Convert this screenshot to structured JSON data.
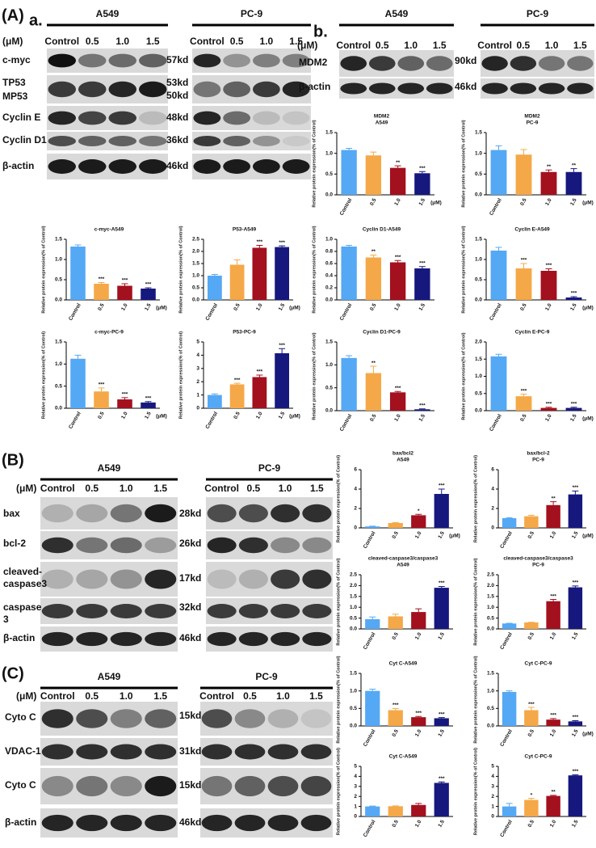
{
  "figure": {
    "A": {
      "label": "(A)",
      "sub": "a.",
      "unit": "(μM)",
      "groups": [
        "A549",
        "PC-9"
      ],
      "lanes": [
        "Control",
        "0.5",
        "1.0",
        "1.5"
      ],
      "rows": [
        "c-myc",
        "TP53",
        "MP53",
        "Cyclin E",
        "Cyclin D1",
        "β-actin"
      ],
      "sizes": [
        "57kd",
        "53kd",
        "50kd",
        "48kd",
        "36kd",
        "46kd"
      ]
    },
    "Ab": {
      "sub": "b.",
      "unit": "(μM)",
      "groups": [
        "A549",
        "PC-9"
      ],
      "lanes": [
        "Control",
        "0.5",
        "1.0",
        "1.5"
      ],
      "rows": [
        "MDM2",
        "β-actin"
      ],
      "sizes": [
        "90kd",
        "46kd"
      ]
    },
    "B": {
      "label": "(B)",
      "unit": "(μM)",
      "groups": [
        "A549",
        "PC-9"
      ],
      "lanes": [
        "Control",
        "0.5",
        "1.0",
        "1.5"
      ],
      "rows": [
        [
          "bax"
        ],
        [
          "bcl-2"
        ],
        [
          "cleaved-",
          "caspase3"
        ],
        [
          "caspase",
          "3"
        ],
        [
          "β-actin"
        ]
      ],
      "sizes": [
        "28kd",
        "26kd",
        "17kd",
        "32kd",
        "46kd"
      ]
    },
    "C": {
      "label": "(C)",
      "unit": "(μM)",
      "groups": [
        "A549",
        "PC-9"
      ],
      "lanes": [
        "Control",
        "0.5",
        "1.0",
        "1.5"
      ],
      "rows": [
        "Cyto C",
        "VDAC-1",
        "Cyto C",
        "β-actin"
      ],
      "sizes": [
        "15kd",
        "31kd",
        "15kd",
        "46kd"
      ]
    }
  },
  "chart_data": [
    {
      "type": "bar",
      "title": [
        "MDM2",
        "A549"
      ],
      "ylabel": "Relative protein expression(% of Control)",
      "unit": "(μM)",
      "categories": [
        "Control",
        "0.5",
        "1.0",
        "1.5"
      ],
      "values": [
        1.08,
        0.95,
        0.65,
        0.52
      ],
      "errors": [
        0.04,
        0.08,
        0.05,
        0.04
      ],
      "significance": [
        null,
        null,
        "**",
        "***"
      ],
      "colors": [
        "#55a8f4",
        "#f5a848",
        "#a3101e",
        "#16187e"
      ],
      "ylim": [
        0,
        1.5
      ],
      "yticks": [
        {
          "value": 0,
          "label": "0.0"
        },
        0.5,
        {
          "value": 1,
          "label": "1.0"
        },
        1.5
      ]
    },
    {
      "type": "bar",
      "title": [
        "MDM2",
        "PC-9"
      ],
      "ylabel": "Relative protein expression(% of Control)",
      "unit": "(μM)",
      "categories": [
        "Control",
        "0.5",
        "1.0",
        "1.5"
      ],
      "values": [
        1.08,
        0.97,
        0.55,
        0.55
      ],
      "errors": [
        0.1,
        0.12,
        0.05,
        0.08
      ],
      "significance": [
        null,
        null,
        "**",
        "**"
      ],
      "colors": [
        "#55a8f4",
        "#f5a848",
        "#a3101e",
        "#16187e"
      ],
      "ylim": [
        0,
        1.5
      ],
      "yticks": [
        {
          "value": 0,
          "label": "0.0"
        },
        0.5,
        {
          "value": 1,
          "label": "1.0"
        },
        1.5
      ]
    },
    {
      "type": "bar",
      "title": [
        "Cyclin D1-A549"
      ],
      "ylabel": "Relative protein expression(% of Control)",
      "categories": [
        "Control",
        "0.5",
        "1.0",
        "1.5"
      ],
      "values": [
        0.88,
        0.7,
        0.62,
        0.52
      ],
      "errors": [
        0.02,
        0.04,
        0.03,
        0.03
      ],
      "significance": [
        null,
        "**",
        "***",
        "***"
      ],
      "colors": [
        "#55a8f4",
        "#f5a848",
        "#a3101e",
        "#16187e"
      ],
      "ylim": [
        0,
        1
      ],
      "yticks": [
        {
          "value": 0,
          "label": "0.0"
        },
        0.2,
        0.4,
        0.6,
        0.8,
        {
          "value": 1,
          "label": "1.0"
        }
      ]
    },
    {
      "type": "bar",
      "title": [
        "Cyclin E-A549"
      ],
      "ylabel": "Relative protein expression(% of Control)",
      "unit": "(μM)",
      "categories": [
        "Control",
        "0.5",
        "1.0",
        "1.5"
      ],
      "values": [
        1.22,
        0.78,
        0.72,
        0.06
      ],
      "errors": [
        0.08,
        0.12,
        0.05,
        0.02
      ],
      "significance": [
        null,
        "***",
        "***",
        "***"
      ],
      "colors": [
        "#55a8f4",
        "#f5a848",
        "#a3101e",
        "#16187e"
      ],
      "ylim": [
        0,
        1.5
      ],
      "yticks": [
        {
          "value": 0,
          "label": "0.0"
        },
        0.5,
        {
          "value": 1,
          "label": "1.0"
        },
        1.5
      ]
    },
    {
      "type": "bar",
      "title": [
        "c-myc-A549"
      ],
      "ylabel": "Relative protein expression(% of Control)",
      "unit": "(μM)",
      "categories": [
        "Control",
        "0.5",
        "1.0",
        "1.5"
      ],
      "values": [
        1.32,
        0.4,
        0.35,
        0.28
      ],
      "errors": [
        0.04,
        0.03,
        0.05,
        0.02
      ],
      "significance": [
        null,
        "***",
        "***",
        "***"
      ],
      "colors": [
        "#55a8f4",
        "#f5a848",
        "#a3101e",
        "#16187e"
      ],
      "ylim": [
        0,
        1.5
      ],
      "yticks": [
        {
          "value": 0,
          "label": "0.0"
        },
        0.5,
        {
          "value": 1,
          "label": "1.0"
        },
        1.5
      ]
    },
    {
      "type": "bar",
      "title": [
        "P53-A549"
      ],
      "ylabel": "Relative protein expression(% of Control)",
      "unit": "(μM)",
      "categories": [
        "Control",
        "0.5",
        "1.0",
        "1.5"
      ],
      "values": [
        1.0,
        1.45,
        2.15,
        2.18
      ],
      "errors": [
        0.05,
        0.2,
        0.1,
        0.05
      ],
      "significance": [
        null,
        null,
        "***",
        "***"
      ],
      "colors": [
        "#55a8f4",
        "#f5a848",
        "#a3101e",
        "#16187e"
      ],
      "ylim": [
        0,
        2.5
      ],
      "yticks": [
        {
          "value": 0,
          "label": "0.0"
        },
        0.5,
        {
          "value": 1,
          "label": "1.0"
        },
        1.5,
        {
          "value": 2,
          "label": "2.0"
        },
        2.5
      ]
    },
    {
      "type": "bar",
      "title": [
        "c-myc-PC-9"
      ],
      "ylabel": "Relative protein expression(% of Control)",
      "unit": "(μM)",
      "categories": [
        "Control",
        "0.5",
        "1.0",
        "1.5"
      ],
      "values": [
        1.12,
        0.38,
        0.2,
        0.13
      ],
      "errors": [
        0.08,
        0.08,
        0.04,
        0.02
      ],
      "significance": [
        null,
        "***",
        "***",
        "***"
      ],
      "colors": [
        "#55a8f4",
        "#f5a848",
        "#a3101e",
        "#16187e"
      ],
      "ylim": [
        0,
        1.5
      ],
      "yticks": [
        {
          "value": 0,
          "label": "0.0"
        },
        0.5,
        {
          "value": 1,
          "label": "1.0"
        },
        1.5
      ]
    },
    {
      "type": "bar",
      "title": [
        "P53-PC-9"
      ],
      "ylabel": "Relative protein expression(% of Control)",
      "unit": "(μM)",
      "categories": [
        "Control",
        "0.5",
        "1.0",
        "1.5"
      ],
      "values": [
        1.0,
        1.8,
        2.35,
        4.15
      ],
      "errors": [
        0.08,
        0.08,
        0.15,
        0.35
      ],
      "significance": [
        null,
        "***",
        "***",
        "***"
      ],
      "colors": [
        "#55a8f4",
        "#f5a848",
        "#a3101e",
        "#16187e"
      ],
      "ylim": [
        0,
        5
      ],
      "yticks": [
        0,
        1,
        2,
        3,
        4,
        5
      ]
    },
    {
      "type": "bar",
      "title": [
        "Cyclin D1-PC-9"
      ],
      "ylabel": "Relative protein expression(% of Control)",
      "categories": [
        "Control",
        "0.5",
        "1.0",
        "1.5"
      ],
      "values": [
        1.15,
        0.82,
        0.4,
        0.03
      ],
      "errors": [
        0.05,
        0.15,
        0.02,
        0.01
      ],
      "significance": [
        null,
        "**",
        "***",
        "***"
      ],
      "colors": [
        "#55a8f4",
        "#f5a848",
        "#a3101e",
        "#16187e"
      ],
      "ylim": [
        0,
        1.5
      ],
      "yticks": [
        {
          "value": 0,
          "label": "0.0"
        },
        0.5,
        {
          "value": 1,
          "label": "1.0"
        },
        1.5
      ]
    },
    {
      "type": "bar",
      "title": [
        "Cyclin E-PC-9"
      ],
      "ylabel": "Relative protein expression(% of Control)",
      "unit": "(μM)",
      "categories": [
        "Control",
        "0.5",
        "1.0",
        "1.5"
      ],
      "values": [
        1.58,
        0.42,
        0.08,
        0.08
      ],
      "errors": [
        0.06,
        0.06,
        0.02,
        0.02
      ],
      "significance": [
        null,
        "***",
        "***",
        "***"
      ],
      "colors": [
        "#55a8f4",
        "#f5a848",
        "#a3101e",
        "#16187e"
      ],
      "ylim": [
        0,
        2
      ],
      "yticks": [
        {
          "value": 0,
          "label": "0.0"
        },
        0.5,
        {
          "value": 1,
          "label": "1.0"
        },
        1.5,
        {
          "value": 2,
          "label": "2.0"
        }
      ]
    },
    {
      "type": "bar",
      "title": [
        "bax/bcl2",
        "A549"
      ],
      "ylabel": "Relative protein expression(% of Control)",
      "unit": "(μM)",
      "categories": [
        "Control",
        "0.5",
        "1.0",
        "1.5"
      ],
      "values": [
        0.15,
        0.5,
        1.3,
        3.5
      ],
      "errors": [
        0.03,
        0.05,
        0.1,
        0.5
      ],
      "significance": [
        null,
        null,
        "*",
        "***"
      ],
      "colors": [
        "#55a8f4",
        "#f5a848",
        "#a3101e",
        "#16187e"
      ],
      "ylim": [
        0,
        6
      ],
      "yticks": [
        0,
        2,
        4,
        6
      ]
    },
    {
      "type": "bar",
      "title": [
        "bax/bcl-2",
        "PC-9"
      ],
      "ylabel": "Relative protein expression(% of Control)",
      "unit": "(μM)",
      "categories": [
        "Control",
        "0.5",
        "1.0",
        "1.5"
      ],
      "values": [
        1.0,
        1.2,
        2.35,
        3.45
      ],
      "errors": [
        0.05,
        0.1,
        0.35,
        0.35
      ],
      "significance": [
        null,
        null,
        "**",
        "***"
      ],
      "colors": [
        "#55a8f4",
        "#f5a848",
        "#a3101e",
        "#16187e"
      ],
      "ylim": [
        0,
        6
      ],
      "yticks": [
        0,
        2,
        4,
        6
      ]
    },
    {
      "type": "bar",
      "title": [
        "cleaved-caspase3/caspase3",
        "A549"
      ],
      "ylabel": "Relative protein expression(% of Control)",
      "categories": [
        "Control",
        "0.5",
        "1.0",
        "1.5"
      ],
      "values": [
        0.45,
        0.58,
        0.78,
        1.9
      ],
      "errors": [
        0.1,
        0.1,
        0.15,
        0.06
      ],
      "significance": [
        null,
        null,
        null,
        "***"
      ],
      "colors": [
        "#55a8f4",
        "#f5a848",
        "#a3101e",
        "#16187e"
      ],
      "ylim": [
        0,
        2.5
      ],
      "yticks": [
        {
          "value": 0,
          "label": "0.0"
        },
        0.5,
        {
          "value": 1,
          "label": "1.0"
        },
        1.5,
        {
          "value": 2,
          "label": "2.0"
        },
        2.5
      ]
    },
    {
      "type": "bar",
      "title": [
        "cleaved-caspase3/caspase3",
        "PC-9"
      ],
      "ylabel": "Relative protein expression(% of Control)",
      "categories": [
        "Control",
        "0.5",
        "1.0",
        "1.5"
      ],
      "values": [
        0.25,
        0.3,
        1.28,
        1.92
      ],
      "errors": [
        0.01,
        0.01,
        0.08,
        0.06
      ],
      "significance": [
        null,
        null,
        "***",
        "***"
      ],
      "colors": [
        "#55a8f4",
        "#f5a848",
        "#a3101e",
        "#16187e"
      ],
      "ylim": [
        0,
        2.5
      ],
      "yticks": [
        {
          "value": 0,
          "label": "0.0"
        },
        0.5,
        {
          "value": 1,
          "label": "1.0"
        },
        1.5,
        {
          "value": 2,
          "label": "2.0"
        },
        2.5
      ]
    },
    {
      "type": "bar",
      "title": [
        "Cyt C-A549"
      ],
      "ylabel": "Relative protein expression(% of Control)",
      "categories": [
        "Control",
        "0.5",
        "1.0",
        "1.5"
      ],
      "values": [
        1.0,
        0.45,
        0.25,
        0.22
      ],
      "errors": [
        0.05,
        0.05,
        0.02,
        0.02
      ],
      "significance": [
        null,
        "***",
        "***",
        "***"
      ],
      "colors": [
        "#55a8f4",
        "#f5a848",
        "#a3101e",
        "#16187e"
      ],
      "ylim": [
        0,
        1.5
      ],
      "yticks": [
        {
          "value": 0,
          "label": "0.0"
        },
        0.5,
        {
          "value": 1,
          "label": "1.0"
        },
        1.5
      ]
    },
    {
      "type": "bar",
      "title": [
        "Cyt C-PC-9"
      ],
      "ylabel": "Relative protein expression(% of Control)",
      "unit": "(μM)",
      "categories": [
        "Control",
        "0.5",
        "1.0",
        "1.5"
      ],
      "values": [
        0.97,
        0.45,
        0.18,
        0.13
      ],
      "errors": [
        0.03,
        0.08,
        0.03,
        0.02
      ],
      "significance": [
        null,
        "***",
        "***",
        "***"
      ],
      "colors": [
        "#55a8f4",
        "#f5a848",
        "#a3101e",
        "#16187e"
      ],
      "ylim": [
        0,
        1.5
      ],
      "yticks": [
        {
          "value": 0,
          "label": "0.0"
        },
        0.5,
        {
          "value": 1,
          "label": "1.0"
        },
        1.5
      ]
    },
    {
      "type": "bar",
      "title": [
        "Cyt C-A549"
      ],
      "ylabel": "Relative protein expression(% of Control)",
      "categories": [
        "Control",
        "0.5",
        "1.0",
        "1.5"
      ],
      "values": [
        1.0,
        1.02,
        1.15,
        3.35
      ],
      "errors": [
        0.04,
        0.04,
        0.15,
        0.1
      ],
      "significance": [
        null,
        null,
        null,
        "***"
      ],
      "colors": [
        "#55a8f4",
        "#f5a848",
        "#a3101e",
        "#16187e"
      ],
      "ylim": [
        0,
        5
      ],
      "yticks": [
        0,
        1,
        2,
        3,
        4,
        5
      ]
    },
    {
      "type": "bar",
      "title": [
        "Cyt C-PC-9"
      ],
      "ylabel": "Relative protein expression(% of Control)",
      "categories": [
        "Control",
        "0.5",
        "1.0",
        "1.5"
      ],
      "values": [
        1.0,
        1.65,
        2.05,
        4.1
      ],
      "errors": [
        0.3,
        0.15,
        0.06,
        0.06
      ],
      "significance": [
        null,
        "*",
        "**",
        "***"
      ],
      "colors": [
        "#55a8f4",
        "#f5a848",
        "#a3101e",
        "#16187e"
      ],
      "ylim": [
        0,
        5
      ],
      "yticks": [
        0,
        1,
        2,
        3,
        4,
        5
      ]
    }
  ]
}
